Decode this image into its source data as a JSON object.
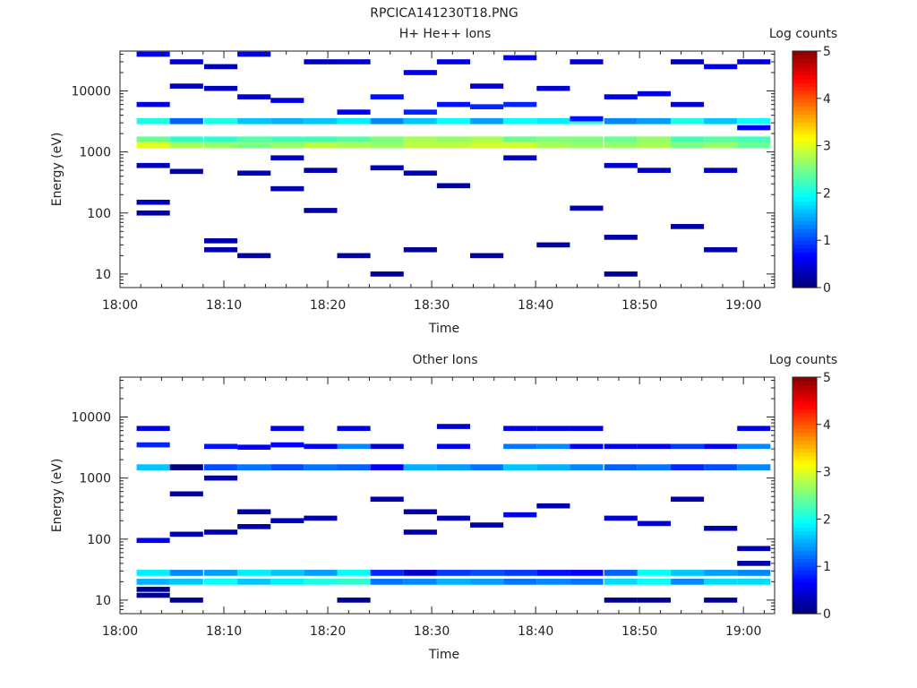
{
  "figure_title": "RPCICA141230T18.PNG",
  "colors": {
    "axis": "#222222",
    "background": "#ffffff"
  },
  "colormap": [
    "#00007f",
    "#0000ff",
    "#007fff",
    "#00ffff",
    "#7fff7f",
    "#ffff00",
    "#ff7f00",
    "#ff0000",
    "#7f0000"
  ],
  "chart_data": [
    {
      "type": "heatmap",
      "title": "H+ He++ Ions",
      "xlabel": "Time",
      "ylabel": "Energy (eV)",
      "x_ticks": [
        "18:00",
        "18:10",
        "18:20",
        "18:30",
        "18:40",
        "18:50",
        "19:00"
      ],
      "x_range_minutes": [
        0,
        63
      ],
      "y_scale": "log",
      "ylim": [
        6,
        45000
      ],
      "y_ticks": [
        10,
        100,
        1000,
        10000
      ],
      "y_tick_labels": [
        "10",
        "100",
        "1000",
        "10000"
      ],
      "colorbar": {
        "label": "Log counts",
        "range": [
          0,
          5
        ],
        "ticks": [
          "0",
          "1",
          "2",
          "3",
          "4",
          "5"
        ]
      },
      "time_bin_starts_minutes": [
        1.6,
        4.8,
        8.1,
        11.3,
        14.5,
        17.7,
        20.9,
        24.1,
        27.3,
        30.5,
        33.7,
        36.9,
        40.1,
        43.3,
        46.6,
        49.8,
        53.0,
        56.2,
        59.4
      ],
      "time_bin_width_minutes": 3.2,
      "energy_bins_eV": [
        11000,
        3200,
        1600,
        1300
      ],
      "bands": [
        {
          "energy_bin": 1,
          "values": [
            2.0,
            1.1,
            2.0,
            1.6,
            1.5,
            1.6,
            1.8,
            1.3,
            1.6,
            1.9,
            1.4,
            1.9,
            1.8,
            2.1,
            1.3,
            1.4,
            2.0,
            1.6,
            1.9
          ]
        },
        {
          "energy_bin": 2,
          "values": [
            2.4,
            2.1,
            2.1,
            2.3,
            2.2,
            2.2,
            2.3,
            2.5,
            2.7,
            2.6,
            2.7,
            2.4,
            2.5,
            2.5,
            2.4,
            2.6,
            2.2,
            2.3,
            2.2
          ]
        },
        {
          "energy_bin": 3,
          "values": [
            3.0,
            2.7,
            2.6,
            2.5,
            2.6,
            2.8,
            2.7,
            2.6,
            2.8,
            2.8,
            2.9,
            2.9,
            2.7,
            2.6,
            2.6,
            2.7,
            2.5,
            2.6,
            2.4
          ]
        }
      ],
      "sparse_samples": [
        {
          "t": 2.5,
          "e": 40000,
          "v": 0.6
        },
        {
          "t": 2.5,
          "e": 6000,
          "v": 0.5
        },
        {
          "t": 2.5,
          "e": 600,
          "v": 0.3
        },
        {
          "t": 2.5,
          "e": 150,
          "v": 0.3
        },
        {
          "t": 2.5,
          "e": 100,
          "v": 0.2
        },
        {
          "t": 6.0,
          "e": 30000,
          "v": 0.4
        },
        {
          "t": 6.0,
          "e": 12000,
          "v": 0.3
        },
        {
          "t": 6.0,
          "e": 480,
          "v": 0.2
        },
        {
          "t": 9.0,
          "e": 25000,
          "v": 0.3
        },
        {
          "t": 9.0,
          "e": 11000,
          "v": 0.3
        },
        {
          "t": 9.0,
          "e": 35,
          "v": 0.2
        },
        {
          "t": 9.0,
          "e": 25,
          "v": 0.2
        },
        {
          "t": 12.0,
          "e": 40000,
          "v": 0.5
        },
        {
          "t": 12.0,
          "e": 8000,
          "v": 0.4
        },
        {
          "t": 12.0,
          "e": 450,
          "v": 0.3
        },
        {
          "t": 12.0,
          "e": 20,
          "v": 0.2
        },
        {
          "t": 15.5,
          "e": 7000,
          "v": 0.5
        },
        {
          "t": 15.5,
          "e": 800,
          "v": 0.3
        },
        {
          "t": 15.5,
          "e": 250,
          "v": 0.2
        },
        {
          "t": 19.0,
          "e": 30000,
          "v": 0.3
        },
        {
          "t": 19.0,
          "e": 500,
          "v": 0.2
        },
        {
          "t": 19.0,
          "e": 110,
          "v": 0.2
        },
        {
          "t": 22.0,
          "e": 30000,
          "v": 0.4
        },
        {
          "t": 22.0,
          "e": 4500,
          "v": 0.6
        },
        {
          "t": 22.0,
          "e": 20,
          "v": 0.2
        },
        {
          "t": 25.5,
          "e": 8000,
          "v": 0.7
        },
        {
          "t": 25.5,
          "e": 550,
          "v": 0.3
        },
        {
          "t": 25.5,
          "e": 10,
          "v": 0.1
        },
        {
          "t": 28.5,
          "e": 20000,
          "v": 0.5
        },
        {
          "t": 28.5,
          "e": 4500,
          "v": 0.8
        },
        {
          "t": 28.5,
          "e": 450,
          "v": 0.3
        },
        {
          "t": 28.5,
          "e": 25,
          "v": 0.1
        },
        {
          "t": 32.0,
          "e": 30000,
          "v": 0.5
        },
        {
          "t": 32.0,
          "e": 6000,
          "v": 0.7
        },
        {
          "t": 32.0,
          "e": 280,
          "v": 0.2
        },
        {
          "t": 35.0,
          "e": 12000,
          "v": 0.4
        },
        {
          "t": 35.0,
          "e": 5500,
          "v": 0.8
        },
        {
          "t": 35.0,
          "e": 20,
          "v": 0.2
        },
        {
          "t": 38.5,
          "e": 35000,
          "v": 0.5
        },
        {
          "t": 38.5,
          "e": 6000,
          "v": 0.8
        },
        {
          "t": 38.5,
          "e": 800,
          "v": 0.3
        },
        {
          "t": 41.5,
          "e": 11000,
          "v": 0.4
        },
        {
          "t": 41.5,
          "e": 30,
          "v": 0.2
        },
        {
          "t": 44.5,
          "e": 30000,
          "v": 0.4
        },
        {
          "t": 44.5,
          "e": 3500,
          "v": 0.7
        },
        {
          "t": 44.5,
          "e": 120,
          "v": 0.2
        },
        {
          "t": 48.0,
          "e": 8000,
          "v": 0.5
        },
        {
          "t": 48.0,
          "e": 600,
          "v": 0.4
        },
        {
          "t": 48.0,
          "e": 40,
          "v": 0.2
        },
        {
          "t": 48.0,
          "e": 10,
          "v": 0.1
        },
        {
          "t": 51.0,
          "e": 9000,
          "v": 0.5
        },
        {
          "t": 51.0,
          "e": 500,
          "v": 0.3
        },
        {
          "t": 54.5,
          "e": 30000,
          "v": 0.3
        },
        {
          "t": 54.5,
          "e": 6000,
          "v": 0.4
        },
        {
          "t": 54.5,
          "e": 60,
          "v": 0.2
        },
        {
          "t": 57.5,
          "e": 25000,
          "v": 0.5
        },
        {
          "t": 57.5,
          "e": 500,
          "v": 0.3
        },
        {
          "t": 57.5,
          "e": 25,
          "v": 0.2
        },
        {
          "t": 61.0,
          "e": 30000,
          "v": 0.4
        },
        {
          "t": 61.0,
          "e": 2500,
          "v": 0.6
        }
      ]
    },
    {
      "type": "heatmap",
      "title": "Other Ions",
      "xlabel": "Time",
      "ylabel": "Energy (eV)",
      "x_ticks": [
        "18:00",
        "18:10",
        "18:20",
        "18:30",
        "18:40",
        "18:50",
        "19:00"
      ],
      "x_range_minutes": [
        0,
        63
      ],
      "y_scale": "log",
      "ylim": [
        6,
        45000
      ],
      "y_ticks": [
        10,
        100,
        1000,
        10000
      ],
      "y_tick_labels": [
        "10",
        "100",
        "1000",
        "10000"
      ],
      "colorbar": {
        "label": "Log counts",
        "range": [
          0,
          5
        ],
        "ticks": [
          "0",
          "1",
          "2",
          "3",
          "4",
          "5"
        ]
      },
      "time_bin_starts_minutes": [
        1.6,
        4.8,
        8.1,
        11.3,
        14.5,
        17.7,
        20.9,
        24.1,
        27.3,
        30.5,
        33.7,
        36.9,
        40.1,
        43.3,
        46.6,
        49.8,
        53.0,
        56.2,
        59.4
      ],
      "time_bin_width_minutes": 3.2,
      "energy_bins_eV": [
        1500,
        28,
        20
      ],
      "bands": [
        {
          "energy_bin": 0,
          "values": [
            1.6,
            0.0,
            1.0,
            1.2,
            1.0,
            1.2,
            1.1,
            0.6,
            1.5,
            1.4,
            1.2,
            1.6,
            1.5,
            1.3,
            1.1,
            1.2,
            0.8,
            1.0,
            1.3
          ]
        },
        {
          "energy_bin": 1,
          "values": [
            1.8,
            1.3,
            1.4,
            1.8,
            1.6,
            1.4,
            1.9,
            0.8,
            0.4,
            0.9,
            1.0,
            0.9,
            0.7,
            0.6,
            1.1,
            1.9,
            1.6,
            1.4,
            1.3
          ]
        },
        {
          "energy_bin": 2,
          "values": [
            1.5,
            1.6,
            1.9,
            1.6,
            1.8,
            2.0,
            2.1,
            1.2,
            1.3,
            1.5,
            1.4,
            1.2,
            1.3,
            1.2,
            1.7,
            1.9,
            1.3,
            1.7,
            1.7
          ]
        }
      ],
      "sparse_samples": [
        {
          "t": 2.5,
          "e": 6500,
          "v": 0.5
        },
        {
          "t": 2.5,
          "e": 3500,
          "v": 0.8
        },
        {
          "t": 2.5,
          "e": 95,
          "v": 0.6
        },
        {
          "t": 2.5,
          "e": 15,
          "v": 0.1
        },
        {
          "t": 2.5,
          "e": 12,
          "v": 0.1
        },
        {
          "t": 6.0,
          "e": 550,
          "v": 0.2
        },
        {
          "t": 6.0,
          "e": 120,
          "v": 0.2
        },
        {
          "t": 6.0,
          "e": 10,
          "v": 0.1
        },
        {
          "t": 9.0,
          "e": 3300,
          "v": 0.7
        },
        {
          "t": 9.0,
          "e": 1000,
          "v": 0.2
        },
        {
          "t": 9.0,
          "e": 130,
          "v": 0.2
        },
        {
          "t": 12.0,
          "e": 3200,
          "v": 0.6
        },
        {
          "t": 12.0,
          "e": 280,
          "v": 0.2
        },
        {
          "t": 12.0,
          "e": 160,
          "v": 0.2
        },
        {
          "t": 15.5,
          "e": 6500,
          "v": 0.5
        },
        {
          "t": 15.5,
          "e": 3500,
          "v": 0.6
        },
        {
          "t": 15.5,
          "e": 200,
          "v": 0.3
        },
        {
          "t": 19.0,
          "e": 3300,
          "v": 0.6
        },
        {
          "t": 19.0,
          "e": 220,
          "v": 0.2
        },
        {
          "t": 22.0,
          "e": 6500,
          "v": 0.5
        },
        {
          "t": 22.0,
          "e": 3300,
          "v": 1.3
        },
        {
          "t": 22.0,
          "e": 10,
          "v": 0.1
        },
        {
          "t": 25.5,
          "e": 3300,
          "v": 0.4
        },
        {
          "t": 25.5,
          "e": 450,
          "v": 0.2
        },
        {
          "t": 28.5,
          "e": 280,
          "v": 0.2
        },
        {
          "t": 28.5,
          "e": 130,
          "v": 0.2
        },
        {
          "t": 32.0,
          "e": 7000,
          "v": 0.4
        },
        {
          "t": 32.0,
          "e": 3300,
          "v": 0.6
        },
        {
          "t": 32.0,
          "e": 220,
          "v": 0.2
        },
        {
          "t": 35.0,
          "e": 170,
          "v": 0.2
        },
        {
          "t": 38.5,
          "e": 6500,
          "v": 0.5
        },
        {
          "t": 38.5,
          "e": 3300,
          "v": 1.2
        },
        {
          "t": 38.5,
          "e": 250,
          "v": 0.5
        },
        {
          "t": 41.5,
          "e": 6500,
          "v": 0.5
        },
        {
          "t": 41.5,
          "e": 3300,
          "v": 1.3
        },
        {
          "t": 41.5,
          "e": 350,
          "v": 0.2
        },
        {
          "t": 44.5,
          "e": 6500,
          "v": 0.5
        },
        {
          "t": 44.5,
          "e": 3300,
          "v": 0.6
        },
        {
          "t": 48.0,
          "e": 3300,
          "v": 0.6
        },
        {
          "t": 48.0,
          "e": 220,
          "v": 0.4
        },
        {
          "t": 48.0,
          "e": 10,
          "v": 0.1
        },
        {
          "t": 51.0,
          "e": 3300,
          "v": 0.6
        },
        {
          "t": 51.0,
          "e": 180,
          "v": 0.4
        },
        {
          "t": 51.0,
          "e": 10,
          "v": 0.1
        },
        {
          "t": 54.5,
          "e": 3300,
          "v": 0.9
        },
        {
          "t": 54.5,
          "e": 450,
          "v": 0.2
        },
        {
          "t": 57.5,
          "e": 3300,
          "v": 0.6
        },
        {
          "t": 57.5,
          "e": 10,
          "v": 0.1
        },
        {
          "t": 57.5,
          "e": 150,
          "v": 0.2
        },
        {
          "t": 61.0,
          "e": 6500,
          "v": 0.5
        },
        {
          "t": 61.0,
          "e": 3300,
          "v": 1.3
        },
        {
          "t": 61.0,
          "e": 70,
          "v": 0.2
        },
        {
          "t": 61.0,
          "e": 40,
          "v": 0.2
        }
      ]
    }
  ]
}
